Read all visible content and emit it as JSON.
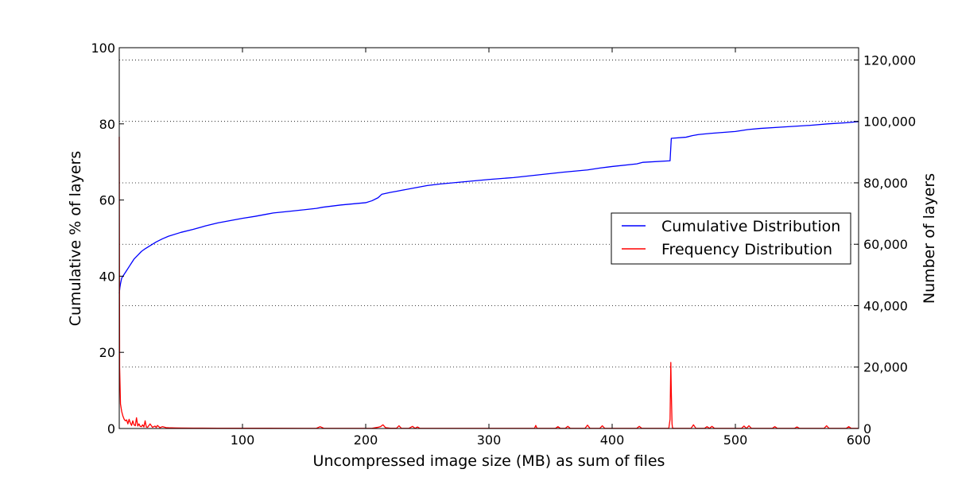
{
  "chart_data": {
    "type": "line",
    "xlabel": "Uncompressed image size (MB) as sum of files",
    "ylabel_left": "Cumulative % of layers",
    "ylabel_right": "Number of layers",
    "xlim": [
      0,
      600
    ],
    "ylim_left": [
      0,
      100
    ],
    "ylim_right": [
      0,
      124000
    ],
    "x_ticks": [
      100,
      200,
      300,
      400,
      500,
      600
    ],
    "x_tick_labels": [
      "100",
      "200",
      "300",
      "400",
      "500",
      "600"
    ],
    "y_left_ticks": [
      0,
      20,
      40,
      60,
      80,
      100
    ],
    "y_left_tick_labels": [
      "0",
      "20",
      "40",
      "60",
      "80",
      "100"
    ],
    "y_right_ticks": [
      0,
      20000,
      40000,
      60000,
      80000,
      100000,
      120000
    ],
    "y_right_tick_labels": [
      "0",
      "20,000",
      "40,000",
      "60,000",
      "80,000",
      "100,000",
      "120,000"
    ],
    "grid": "horizontal dotted lines at right-axis ticks",
    "legend_placement": "center-right",
    "series": [
      {
        "name": "Cumulative Distribution",
        "axis": "left",
        "color": "#0000ff",
        "x": [
          0,
          0.5,
          1,
          2,
          4,
          6,
          8,
          10,
          12,
          15,
          18,
          21,
          25,
          30,
          35,
          40,
          50,
          60,
          70,
          80,
          90,
          100,
          110,
          120,
          125,
          140,
          160,
          165,
          180,
          200,
          205,
          210,
          213,
          220,
          225,
          230,
          240,
          250,
          260,
          280,
          300,
          320,
          340,
          360,
          380,
          390,
          400,
          420,
          425,
          447,
          448,
          460,
          465,
          470,
          480,
          500,
          510,
          520,
          540,
          560,
          575,
          590,
          600
        ],
        "y": [
          35.5,
          37,
          38,
          39.5,
          40.5,
          41.5,
          42.5,
          43.5,
          44.5,
          45.5,
          46.5,
          47.2,
          48,
          49,
          49.8,
          50.5,
          51.5,
          52.3,
          53.2,
          54,
          54.6,
          55.2,
          55.7,
          56.3,
          56.6,
          57.1,
          57.8,
          58.1,
          58.7,
          59.3,
          59.8,
          60.6,
          61.5,
          62,
          62.3,
          62.6,
          63.2,
          63.8,
          64.2,
          64.8,
          65.4,
          65.9,
          66.6,
          67.3,
          67.9,
          68.4,
          68.8,
          69.5,
          69.9,
          70.3,
          76.2,
          76.5,
          76.9,
          77.2,
          77.5,
          78,
          78.5,
          78.8,
          79.2,
          79.6,
          80,
          80.3,
          80.6
        ]
      },
      {
        "name": "Frequency Distribution",
        "axis": "right",
        "color": "#ff0000",
        "x": [
          0,
          0.3,
          1,
          2,
          3,
          4,
          5,
          6,
          7,
          8,
          9,
          10,
          11,
          12,
          13,
          14,
          15,
          16,
          17,
          18,
          19,
          20,
          21,
          22,
          23,
          25,
          27,
          29,
          30,
          31,
          33,
          35,
          38,
          40,
          45,
          50,
          60,
          80,
          120,
          160,
          163,
          166,
          200,
          205,
          210,
          212,
          214,
          216,
          220,
          225,
          227,
          229,
          235,
          238,
          240,
          242,
          244,
          250,
          300,
          337,
          338,
          339,
          345,
          354,
          356,
          358,
          362,
          364,
          366,
          378,
          380,
          382,
          390,
          392,
          394,
          420,
          422,
          424,
          440,
          446,
          447,
          447.6,
          448,
          448.6,
          449,
          450,
          464,
          466,
          468,
          475,
          477,
          479,
          481,
          483,
          505,
          507,
          509,
          511,
          513,
          530,
          532,
          534,
          548,
          550,
          552,
          570,
          572,
          574,
          576,
          590,
          592,
          594,
          600
        ],
        "y": [
          95000,
          20000,
          8000,
          5500,
          4000,
          3000,
          2500,
          2800,
          1500,
          3000,
          1800,
          1000,
          2500,
          1200,
          900,
          3500,
          800,
          1500,
          700,
          600,
          1200,
          500,
          2500,
          500,
          400,
          1500,
          400,
          800,
          350,
          1000,
          300,
          600,
          300,
          250,
          200,
          150,
          120,
          100,
          80,
          70,
          600,
          70,
          60,
          60,
          400,
          600,
          1200,
          300,
          100,
          80,
          900,
          60,
          60,
          700,
          60,
          500,
          60,
          50,
          50,
          50,
          1000,
          50,
          50,
          50,
          600,
          50,
          50,
          700,
          50,
          50,
          1100,
          50,
          50,
          900,
          50,
          50,
          700,
          50,
          50,
          100,
          3000,
          21500,
          12000,
          1500,
          200,
          50,
          50,
          1200,
          50,
          50,
          600,
          50,
          700,
          50,
          50,
          800,
          50,
          900,
          50,
          50,
          600,
          50,
          50,
          500,
          50,
          50,
          50,
          900,
          50,
          50,
          600,
          50,
          50
        ]
      }
    ]
  }
}
